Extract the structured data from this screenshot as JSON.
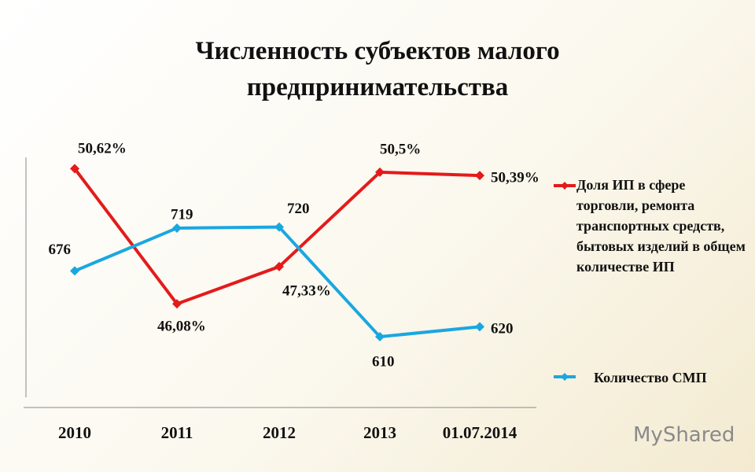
{
  "chart_data": {
    "type": "line",
    "title": "Численность субъектов малого предпринимательства",
    "categories": [
      "2010",
      "2011",
      "2012",
      "2013",
      "01.07.2014"
    ],
    "series": [
      {
        "name": "Доля ИП в сфере торговли, ремонта транспортных средств, бытовых изделий в общем количестве ИП",
        "color": "#e31b1b",
        "values": [
          50.62,
          46.08,
          47.33,
          50.5,
          50.39
        ],
        "value_labels": [
          "50,62%",
          "46,08%",
          "47,33%",
          "50,5%",
          "50,39%"
        ]
      },
      {
        "name": "Количество СМП",
        "color": "#1aa7e0",
        "axis": "y2",
        "values": [
          676,
          719,
          720,
          610,
          620
        ]
      }
    ],
    "ylim": [
      42.6,
      51.0
    ],
    "y2lim": [
      539,
      790
    ],
    "grid": false,
    "legend": "right",
    "annotations": [
      "MyShared"
    ]
  }
}
